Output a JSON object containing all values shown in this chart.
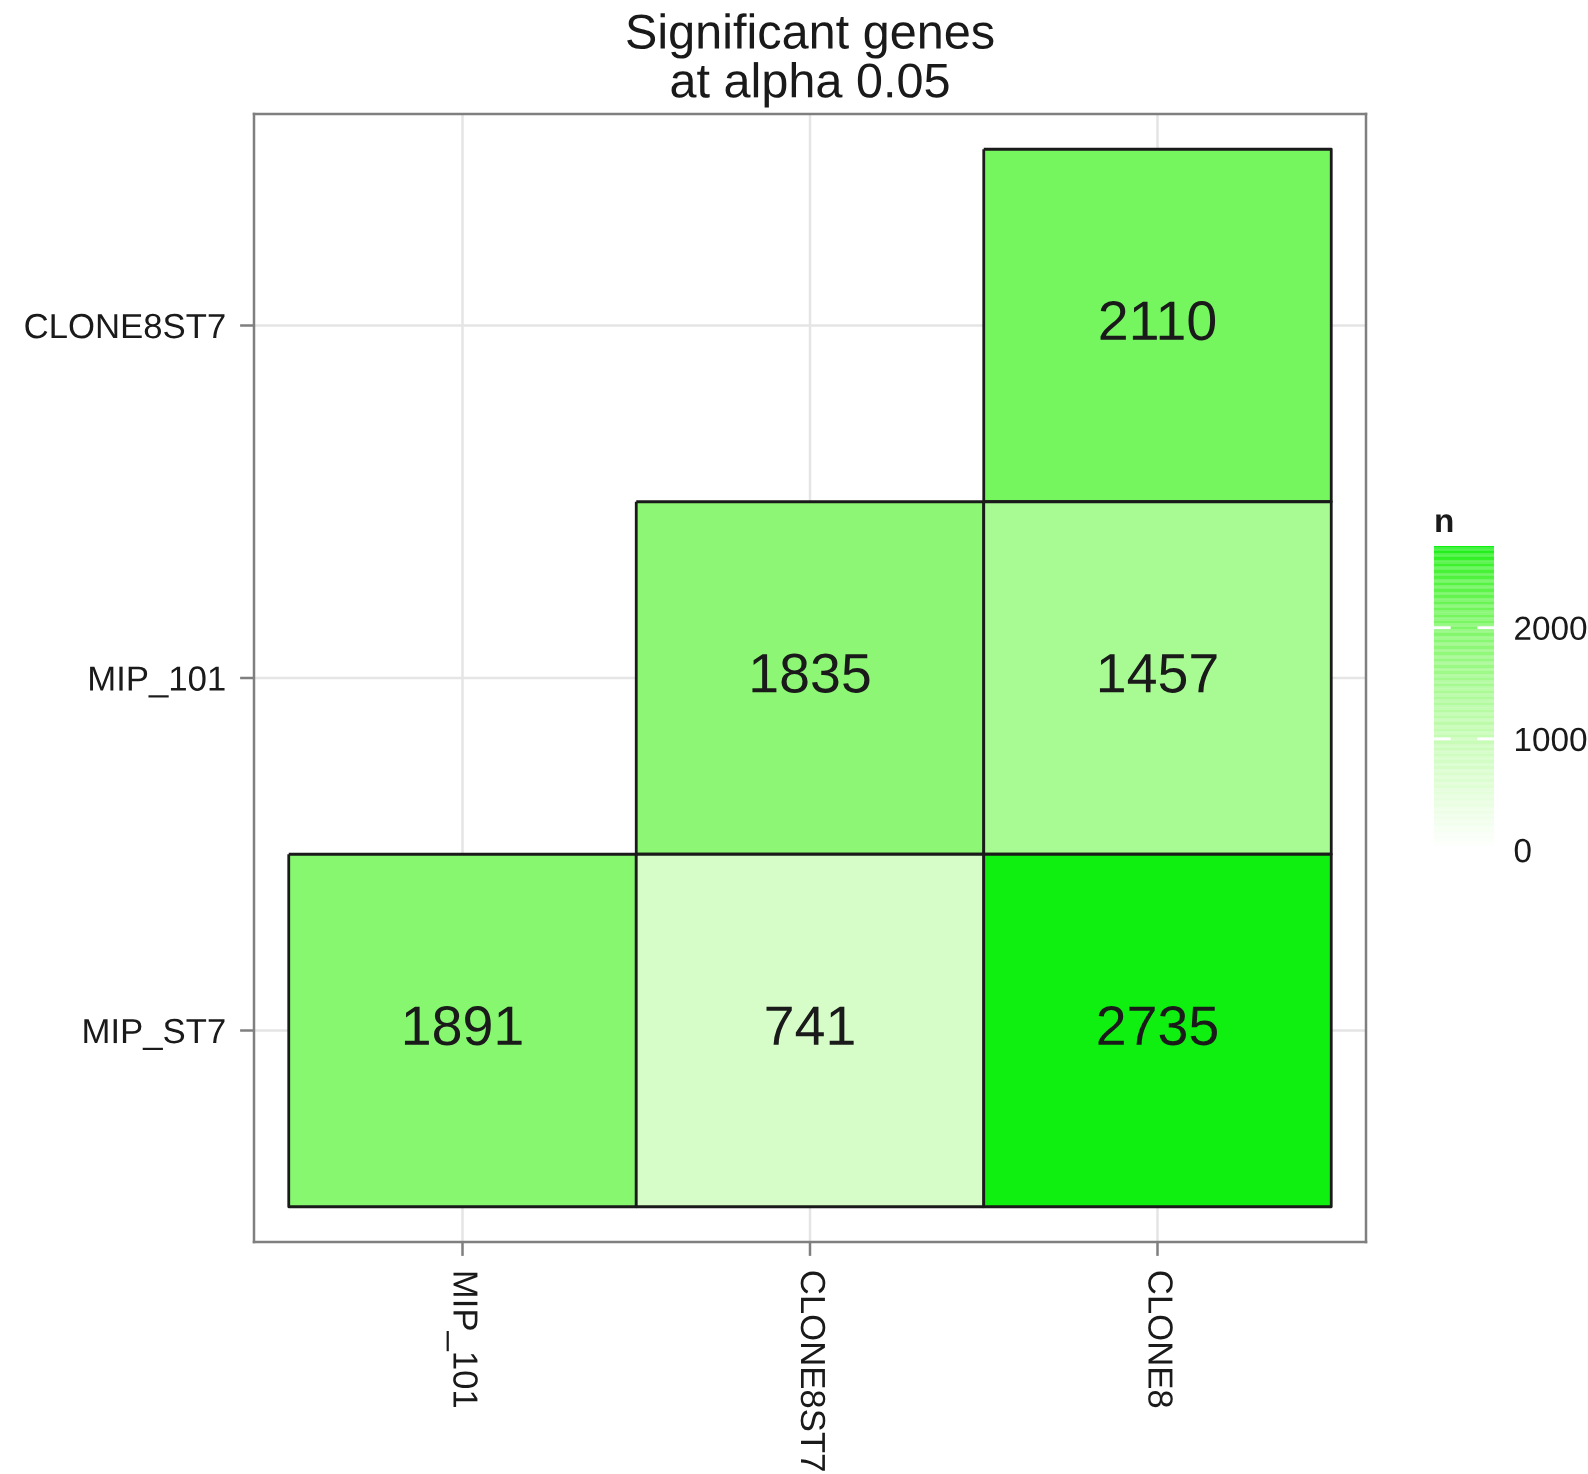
{
  "chart_data": {
    "type": "heatmap",
    "title": "Significant genes\nat alpha 0.05",
    "categories": [
      "MIP_101",
      "CLONE8ST7",
      "CLONE8"
    ],
    "y_categories": [
      "CLONE8ST7",
      "MIP_101",
      "MIP_ST7"
    ],
    "cells": [
      [
        null,
        null,
        2110
      ],
      [
        null,
        1835,
        1457
      ],
      [
        1891,
        741,
        2735
      ]
    ],
    "data_labels": true,
    "clabel": "n",
    "clim": [
      0,
      2735
    ],
    "cticks": [
      0,
      1000,
      2000
    ],
    "grid": true
  }
}
